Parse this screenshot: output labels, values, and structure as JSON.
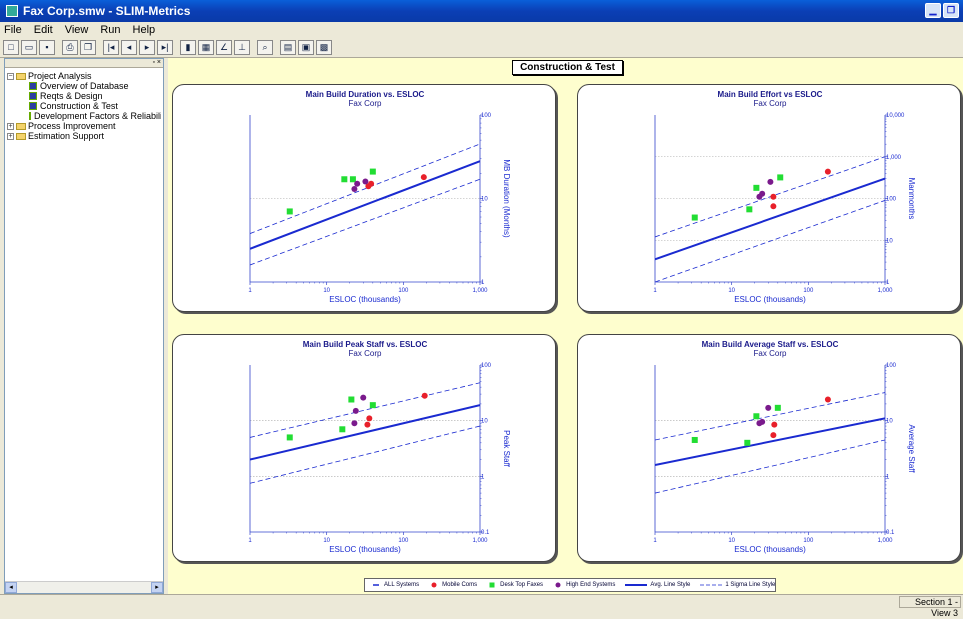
{
  "window": {
    "title": "Fax Corp.smw - SLIM-Metrics"
  },
  "menu": [
    "File",
    "Edit",
    "View",
    "Run",
    "Help"
  ],
  "toolbar": [
    {
      "name": "new-icon",
      "glyph": "□"
    },
    {
      "name": "open-icon",
      "glyph": "▭"
    },
    {
      "name": "save-icon",
      "glyph": "▪"
    },
    {
      "name": "print-icon",
      "glyph": "⎙"
    },
    {
      "name": "copy-icon",
      "glyph": "❐"
    },
    {
      "name": "first-record-icon",
      "glyph": "|◂"
    },
    {
      "name": "prev-record-icon",
      "glyph": "◂"
    },
    {
      "name": "next-record-icon",
      "glyph": "▸"
    },
    {
      "name": "last-record-icon",
      "glyph": "▸|"
    },
    {
      "name": "bar-chart-icon",
      "glyph": "▮"
    },
    {
      "name": "grid-icon",
      "glyph": "▦"
    },
    {
      "name": "line-chart-icon",
      "glyph": "∠"
    },
    {
      "name": "compare-icon",
      "glyph": "⊥"
    },
    {
      "name": "zoom-icon",
      "glyph": "⌕"
    },
    {
      "name": "report-icon",
      "glyph": "▤"
    },
    {
      "name": "export-icon",
      "glyph": "▣"
    },
    {
      "name": "options-icon",
      "glyph": "▩"
    }
  ],
  "tree": [
    {
      "label": "Project Analysis",
      "level": 0,
      "type": "folder",
      "expander": "−"
    },
    {
      "label": "Overview of Database",
      "level": 1,
      "type": "doc"
    },
    {
      "label": "Reqts & Design",
      "level": 1,
      "type": "doc"
    },
    {
      "label": "Construction & Test",
      "level": 1,
      "type": "doc",
      "selected": true
    },
    {
      "label": "Development Factors & Reliabilit",
      "level": 1,
      "type": "doc"
    },
    {
      "label": "Process Improvement",
      "level": 0,
      "type": "folder",
      "expander": "+"
    },
    {
      "label": "Estimation Support",
      "level": 0,
      "type": "folder",
      "expander": "+"
    }
  ],
  "section": {
    "title": "Construction & Test"
  },
  "colors": {
    "mobile": "#e8202a",
    "desktop": "#22dd33",
    "highend": "#7a1a8c",
    "line": "#1a2ad0"
  },
  "chart_data": [
    {
      "type": "scatter",
      "title": "Main Build Duration vs. ESLOC",
      "subtitle": "Fax Corp",
      "xlabel": "ESLOC (thousands)",
      "ylabel": "MB Duration (Months)",
      "xlim": [
        1,
        1000
      ],
      "ylim": [
        1,
        100
      ],
      "log": true,
      "xticks": [
        1,
        10,
        100,
        1000
      ],
      "xtick_labels": [
        "1",
        "10",
        "100",
        "1,000"
      ],
      "yticks": [
        1,
        10,
        100
      ],
      "ytick_labels": [
        "1",
        "10",
        "100"
      ],
      "trend": {
        "x": [
          1,
          1000
        ],
        "avg": [
          2.5,
          28
        ],
        "upper": [
          3.8,
          45
        ],
        "lower": [
          1.6,
          17
        ]
      },
      "series": [
        {
          "name": "Mobile Coms",
          "points": [
            [
              35,
              14
            ],
            [
              38,
              15
            ],
            [
              185,
              18
            ]
          ]
        },
        {
          "name": "Desk Top Faxes",
          "points": [
            [
              3.3,
              7
            ],
            [
              17,
              17
            ],
            [
              22,
              17
            ],
            [
              40,
              21
            ]
          ]
        },
        {
          "name": "High End Systems",
          "points": [
            [
              23,
              13
            ],
            [
              25,
              15
            ],
            [
              32,
              16
            ]
          ]
        }
      ]
    },
    {
      "type": "scatter",
      "title": "Main Build Effort vs ESLOC",
      "subtitle": "Fax Corp",
      "xlabel": "ESLOC (thousands)",
      "ylabel": "Manmonths",
      "xlim": [
        1,
        1000
      ],
      "ylim": [
        1,
        10000
      ],
      "log": true,
      "xticks": [
        1,
        10,
        100,
        1000
      ],
      "xtick_labels": [
        "1",
        "10",
        "100",
        "1,000"
      ],
      "yticks": [
        1,
        10,
        100,
        1000,
        10000
      ],
      "ytick_labels": [
        "1",
        "10",
        "100",
        "1,000",
        "10,000"
      ],
      "trend": {
        "x": [
          1,
          1000
        ],
        "avg": [
          3.5,
          300
        ],
        "upper": [
          12,
          1000
        ],
        "lower": [
          1,
          90
        ]
      },
      "series": [
        {
          "name": "Mobile Coms",
          "points": [
            [
              35,
              65
            ],
            [
              35,
              110
            ],
            [
              180,
              440
            ]
          ]
        },
        {
          "name": "Desk Top Faxes",
          "points": [
            [
              3.3,
              35
            ],
            [
              17,
              55
            ],
            [
              21,
              180
            ],
            [
              43,
              320
            ]
          ]
        },
        {
          "name": "High End Systems",
          "points": [
            [
              23,
              110
            ],
            [
              25,
              130
            ],
            [
              32,
              250
            ]
          ]
        }
      ]
    },
    {
      "type": "scatter",
      "title": "Main Build Peak Staff vs. ESLOC",
      "subtitle": "Fax Corp",
      "xlabel": "ESLOC (thousands)",
      "ylabel": "Peak Staff",
      "xlim": [
        1,
        1000
      ],
      "ylim": [
        0.1,
        100
      ],
      "log": true,
      "xticks": [
        1,
        10,
        100,
        1000
      ],
      "xtick_labels": [
        "1",
        "10",
        "100",
        "1,000"
      ],
      "yticks": [
        0.1,
        1,
        10,
        100
      ],
      "ytick_labels": [
        "0.1",
        "1",
        "10",
        "100"
      ],
      "trend": {
        "x": [
          1,
          1000
        ],
        "avg": [
          2,
          19
        ],
        "upper": [
          5,
          48
        ],
        "lower": [
          0.75,
          8
        ]
      },
      "series": [
        {
          "name": "Mobile Coms",
          "points": [
            [
              34,
              8.5
            ],
            [
              36,
              11
            ],
            [
              190,
              28
            ]
          ]
        },
        {
          "name": "Desk Top Faxes",
          "points": [
            [
              3.3,
              5
            ],
            [
              16,
              7
            ],
            [
              21,
              24
            ],
            [
              40,
              19
            ]
          ]
        },
        {
          "name": "High End Systems",
          "points": [
            [
              23,
              9
            ],
            [
              24,
              15
            ],
            [
              30,
              26
            ]
          ]
        }
      ]
    },
    {
      "type": "scatter",
      "title": "Main Build  Average Staff vs. ESLOC",
      "subtitle": "Fax Corp",
      "xlabel": "ESLOC (thousands)",
      "ylabel": "Average Staff",
      "xlim": [
        1,
        1000
      ],
      "ylim": [
        0.1,
        100
      ],
      "log": true,
      "xticks": [
        1,
        10,
        100,
        1000
      ],
      "xtick_labels": [
        "1",
        "10",
        "100",
        "1,000"
      ],
      "yticks": [
        0.1,
        1,
        10,
        100
      ],
      "ytick_labels": [
        "0.1",
        "1",
        "10",
        "100"
      ],
      "trend": {
        "x": [
          1,
          1000
        ],
        "avg": [
          1.6,
          11
        ],
        "upper": [
          4.5,
          32
        ],
        "lower": [
          0.5,
          4.5
        ]
      },
      "series": [
        {
          "name": "Mobile Coms",
          "points": [
            [
              35,
              5.5
            ],
            [
              36,
              8.5
            ],
            [
              180,
              24
            ]
          ]
        },
        {
          "name": "Desk Top Faxes",
          "points": [
            [
              3.3,
              4.5
            ],
            [
              16,
              4
            ],
            [
              21,
              12
            ],
            [
              40,
              17
            ]
          ]
        },
        {
          "name": "High End Systems",
          "points": [
            [
              23,
              9
            ],
            [
              25,
              9.5
            ],
            [
              30,
              17
            ]
          ]
        }
      ]
    }
  ],
  "legend": [
    {
      "label": "ALL Systems",
      "kind": "dash-short"
    },
    {
      "label": "Mobile Coms",
      "kind": "circle",
      "color": "#e8202a"
    },
    {
      "label": "Desk Top Faxes",
      "kind": "square",
      "color": "#22dd33"
    },
    {
      "label": "High End Systems",
      "kind": "circle",
      "color": "#7a1a8c"
    },
    {
      "label": "Avg. Line Style",
      "kind": "line-bold"
    },
    {
      "label": "1 Sigma Line Style",
      "kind": "line-dash"
    }
  ],
  "status": {
    "text": "Section 1 - View 3"
  }
}
